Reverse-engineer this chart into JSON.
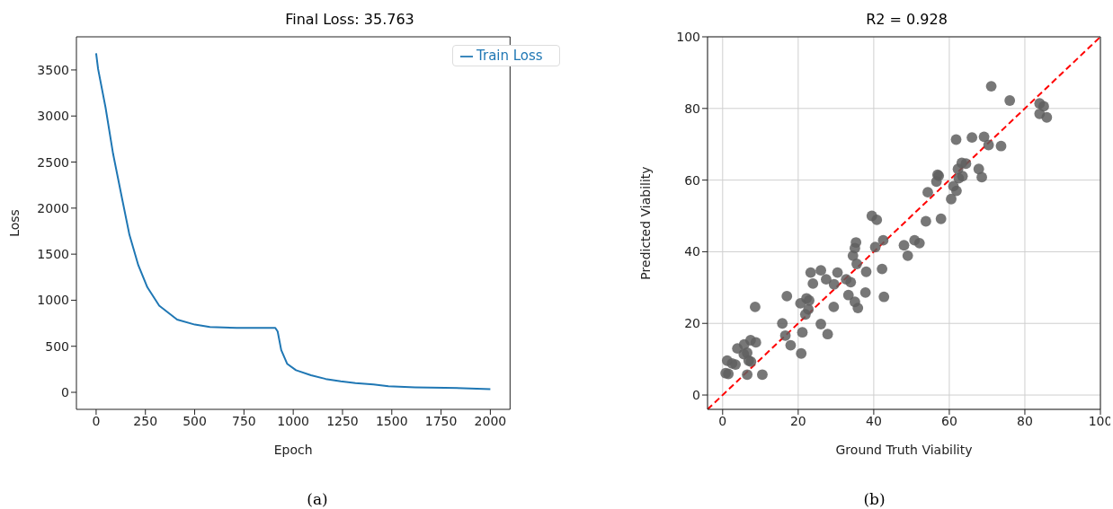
{
  "chart_data": [
    {
      "type": "line",
      "title": "Final Loss: 35.763",
      "xlabel": "Epoch",
      "ylabel": "Loss",
      "xlim": [
        -100,
        2100
      ],
      "ylim": [
        -185,
        3860
      ],
      "xticks": [
        0,
        250,
        500,
        750,
        1000,
        1250,
        1500,
        1750,
        2000
      ],
      "yticks": [
        0,
        500,
        1000,
        1500,
        2000,
        2500,
        3000,
        3500
      ],
      "legend": "top right",
      "annotations": [
        "(a)"
      ],
      "series": [
        {
          "name": "Train Loss",
          "color": "#1f77b4",
          "x": [
            0,
            10,
            48,
            86,
            131,
            169,
            214,
            260,
            320,
            411,
            501,
            577,
            713,
            909,
            921,
            939,
            969,
            1014,
            1090,
            1165,
            1241,
            1316,
            1407,
            1483,
            1618,
            1769,
            2000
          ],
          "values": [
            3680,
            3510,
            3090,
            2590,
            2110,
            1710,
            1380,
            1140,
            940,
            790,
            735,
            710,
            700,
            700,
            660,
            460,
            310,
            240,
            185,
            145,
            120,
            100,
            85,
            65,
            55,
            50,
            35
          ]
        }
      ]
    },
    {
      "type": "scatter",
      "title": "R2 = 0.928",
      "xlabel": "Ground Truth Viability",
      "ylabel": "Predicted Viability",
      "xlim": [
        -4,
        100
      ],
      "ylim": [
        -4,
        100
      ],
      "xticks": [
        0,
        20,
        40,
        60,
        80,
        100
      ],
      "yticks": [
        0,
        20,
        40,
        60,
        80,
        100
      ],
      "grid": true,
      "marker": "circle",
      "annotations": [
        "(b)"
      ],
      "series": [
        {
          "color": "#5f5f5f",
          "x": [
            0.8,
            1.5,
            1.2,
            2.5,
            3.4,
            3.9,
            5.7,
            5.6,
            6.5,
            6.9,
            7.5,
            6.5,
            7.4,
            8.8,
            8.6,
            10.5,
            15.8,
            16.6,
            17.0,
            18.0,
            20.8,
            21.1,
            20.6,
            21.9,
            22.2,
            22.7,
            22.9,
            23.3,
            23.9,
            26.0,
            26.0,
            27.4,
            27.8,
            29.4,
            29.5,
            30.4,
            32.7,
            33.3,
            33.9,
            35.0,
            35.8,
            35.5,
            34.5,
            35.0,
            35.3,
            37.8,
            38.0,
            39.5,
            40.8,
            40.4,
            42.5,
            42.2,
            42.7,
            48.0,
            49.0,
            50.8,
            52.1,
            53.8,
            57.8,
            71.1,
            76.0,
            83.9,
            85.0,
            83.9,
            85.8,
            61.8,
            66.0,
            69.2,
            70.4,
            73.7,
            63.3,
            64.4,
            62.3,
            67.8,
            68.6,
            63.5,
            62.5,
            56.9,
            57.2,
            56.6,
            54.3,
            61.9,
            61.1,
            60.5
          ],
          "values": [
            6.1,
            5.9,
            9.6,
            8.8,
            8.5,
            13.0,
            14.1,
            11.4,
            11.8,
            9.6,
            9.3,
            5.7,
            15.3,
            14.7,
            24.6,
            5.7,
            20.0,
            16.6,
            27.6,
            13.9,
            11.6,
            17.5,
            25.6,
            22.5,
            27.0,
            23.9,
            26.4,
            34.2,
            31.1,
            34.8,
            19.8,
            32.3,
            17.0,
            24.6,
            30.9,
            34.2,
            32.3,
            27.9,
            31.5,
            26.0,
            24.3,
            36.6,
            38.9,
            41.0,
            42.6,
            28.6,
            34.4,
            50.0,
            48.9,
            41.3,
            43.2,
            35.2,
            27.4,
            41.8,
            38.9,
            43.2,
            42.4,
            48.5,
            49.2,
            86.2,
            82.2,
            81.4,
            80.6,
            78.5,
            77.5,
            71.3,
            71.9,
            72.1,
            69.8,
            69.5,
            64.8,
            64.6,
            63.1,
            63.1,
            60.8,
            61.1,
            60.5,
            61.5,
            61.2,
            59.6,
            56.6,
            57.0,
            58.3,
            54.7
          ]
        },
        {
          "type": "line",
          "color": "#ff0000",
          "line_style": "dashed",
          "marker": "none",
          "x": [
            -4,
            100
          ],
          "values": [
            -4,
            100
          ]
        }
      ]
    }
  ]
}
